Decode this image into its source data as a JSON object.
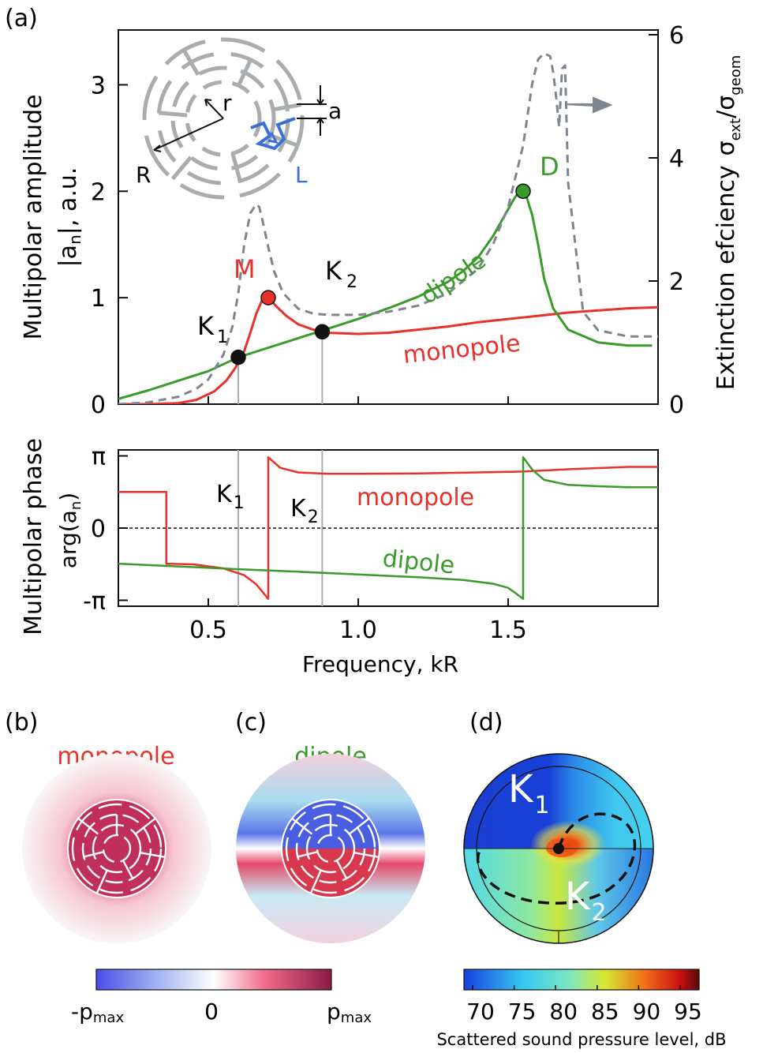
{
  "panel_labels": {
    "a": "(a)",
    "b": "(b)",
    "c": "(c)",
    "d": "(d)"
  },
  "colors": {
    "red": "#e8312a",
    "green": "#3a9a2a",
    "gray": "#7d8591",
    "blue_label": "#3a6fd8",
    "inset": "#a9adaf"
  },
  "chart_data": [
    {
      "type": "line",
      "title": "",
      "xlabel": "",
      "ylabel": "Multipolar amplitude |a_n|, a.u.",
      "ylabel_line1": "Multipolar amplitude",
      "ylabel_line2": "|a",
      "ylabel_sub": "n",
      "ylabel_tail": "|, a.u.",
      "y2label": "Extinction efciency σext/σgeom",
      "y2label_main": "Extinction efciency",
      "y2label_sigma": "σ",
      "y2label_sub1": "ext",
      "y2label_slash": "/σ",
      "y2label_sub2": "geom",
      "xlim": [
        0.2,
        2.0
      ],
      "ylim": [
        0,
        3.5
      ],
      "y2lim": [
        0,
        6
      ],
      "yticks": [
        0,
        1,
        2,
        3
      ],
      "ytick_labels": [
        "0",
        "1",
        "2",
        "3"
      ],
      "y2ticks": [
        0,
        2,
        4,
        6
      ],
      "y2tick_labels": [
        "0",
        "2",
        "4",
        "6"
      ],
      "xticks": [
        0.5,
        1.0,
        1.5
      ],
      "series": [
        {
          "name": "monopole",
          "color": "#e8312a",
          "style": "solid",
          "x": [
            0.2,
            0.3,
            0.4,
            0.46,
            0.52,
            0.56,
            0.59,
            0.62,
            0.64,
            0.66,
            0.68,
            0.69,
            0.71,
            0.73,
            0.76,
            0.8,
            0.85,
            0.9,
            1.0,
            1.1,
            1.2,
            1.3,
            1.4,
            1.5,
            1.6,
            1.7,
            1.8,
            1.9,
            2.0
          ],
          "y": [
            0.0,
            0.0,
            0.01,
            0.04,
            0.12,
            0.22,
            0.34,
            0.5,
            0.67,
            0.85,
            0.98,
            1.0,
            0.97,
            0.91,
            0.83,
            0.75,
            0.7,
            0.67,
            0.66,
            0.67,
            0.7,
            0.73,
            0.77,
            0.8,
            0.83,
            0.86,
            0.88,
            0.9,
            0.91
          ]
        },
        {
          "name": "dipole",
          "color": "#3a9a2a",
          "style": "solid",
          "x": [
            0.2,
            0.3,
            0.4,
            0.5,
            0.6,
            0.7,
            0.8,
            0.9,
            1.0,
            1.1,
            1.2,
            1.3,
            1.35,
            1.4,
            1.45,
            1.49,
            1.52,
            1.54,
            1.56,
            1.58,
            1.6,
            1.62,
            1.65,
            1.7,
            1.8,
            1.9,
            1.98
          ],
          "y": [
            0.05,
            0.13,
            0.22,
            0.31,
            0.44,
            0.53,
            0.62,
            0.71,
            0.8,
            0.9,
            1.01,
            1.15,
            1.25,
            1.38,
            1.58,
            1.78,
            1.93,
            2.01,
            1.96,
            1.78,
            1.5,
            1.18,
            0.9,
            0.7,
            0.58,
            0.55,
            0.55
          ]
        },
        {
          "name": "extinction efficiency",
          "color": "#7d8591",
          "style": "dashed",
          "axis": "right",
          "x": [
            0.2,
            0.3,
            0.4,
            0.46,
            0.5,
            0.55,
            0.58,
            0.6,
            0.62,
            0.64,
            0.66,
            0.67,
            0.68,
            0.7,
            0.72,
            0.75,
            0.8,
            0.85,
            0.9,
            1.0,
            1.1,
            1.2,
            1.3,
            1.4,
            1.45,
            1.5,
            1.55,
            1.58,
            1.6,
            1.62,
            1.64,
            1.65,
            1.66,
            1.67,
            1.68,
            1.69,
            1.7,
            1.75,
            1.8,
            1.9,
            2.0
          ],
          "y": [
            0.0,
            0.03,
            0.12,
            0.25,
            0.4,
            0.8,
            1.25,
            1.8,
            2.6,
            3.1,
            3.25,
            3.2,
            3.0,
            2.55,
            2.15,
            1.8,
            1.55,
            1.47,
            1.45,
            1.45,
            1.5,
            1.6,
            1.8,
            2.2,
            2.6,
            3.2,
            4.2,
            5.2,
            5.6,
            5.7,
            5.65,
            5.4,
            5.0,
            4.5,
            5.45,
            5.5,
            3.6,
            1.5,
            1.2,
            1.1,
            1.1
          ]
        }
      ],
      "points": [
        {
          "label": "K1",
          "x": 0.6,
          "y": 0.44,
          "color": "#111111"
        },
        {
          "label": "M",
          "x": 0.7,
          "y": 1.0,
          "color": "#e8312a"
        },
        {
          "label": "K2",
          "x": 0.88,
          "y": 0.68,
          "color": "#111111"
        },
        {
          "label": "D",
          "x": 1.55,
          "y": 2.0,
          "color": "#3a9a2a"
        }
      ],
      "vlines": [
        0.6,
        0.88
      ],
      "annotations": {
        "M": "M",
        "D": "D",
        "K1_letter": "K",
        "K1_sub": "1",
        "K2_letter": "K",
        "K2_sub": "2",
        "dipole": "dipole",
        "monopole": "monopole"
      },
      "inset": {
        "r": "r",
        "R": "R",
        "a": "a",
        "L": "L"
      }
    },
    {
      "type": "line",
      "xlabel": "Frequency, kR",
      "ylabel": "Multipolar phase arg(a_n)",
      "ylabel_line1": "Multipolar phase",
      "ylabel_line2": "arg(a",
      "ylabel_sub": "n",
      "ylabel_tail": ")",
      "xlim": [
        0.2,
        2.0
      ],
      "ylim": [
        -3.4,
        3.4
      ],
      "yticks": [
        3.14159,
        0,
        -3.14159
      ],
      "ytick_labels": [
        "π",
        "0",
        "-π"
      ],
      "xticks": [
        0.5,
        1.0,
        1.5
      ],
      "xtick_labels": [
        "0.5",
        "1.0",
        "1.5"
      ],
      "series": [
        {
          "name": "monopole",
          "color": "#e8312a",
          "style": "solid",
          "x": [
            0.2,
            0.36,
            0.36,
            0.45,
            0.55,
            0.62,
            0.66,
            0.7,
            0.7,
            0.74,
            0.8,
            0.9,
            1.0,
            1.2,
            1.4,
            1.5,
            1.55,
            1.7,
            1.9,
            2.0
          ],
          "y": [
            1.57,
            1.57,
            -1.55,
            -1.58,
            -1.75,
            -2.05,
            -2.45,
            -3.08,
            3.08,
            2.62,
            2.42,
            2.36,
            2.36,
            2.38,
            2.42,
            2.45,
            2.46,
            2.56,
            2.66,
            2.66
          ]
        },
        {
          "name": "dipole",
          "color": "#3a9a2a",
          "style": "solid",
          "x": [
            0.2,
            0.4,
            0.6,
            0.8,
            1.0,
            1.2,
            1.35,
            1.45,
            1.5,
            1.53,
            1.55,
            1.55,
            1.58,
            1.62,
            1.7,
            1.8,
            1.9,
            2.0
          ],
          "y": [
            -1.55,
            -1.67,
            -1.79,
            -1.9,
            -2.02,
            -2.14,
            -2.26,
            -2.42,
            -2.6,
            -2.88,
            -3.08,
            3.08,
            2.55,
            2.1,
            1.88,
            1.82,
            1.78,
            1.78
          ]
        }
      ],
      "hline": 0,
      "vlines": [
        0.6,
        0.88
      ],
      "annotations": {
        "K1_letter": "K",
        "K1_sub": "1",
        "K2_letter": "K",
        "K2_sub": "2",
        "monopole": "monopole",
        "dipole": "dipole"
      }
    }
  ],
  "panel_b": {
    "title": "monopole"
  },
  "panel_c": {
    "title": "dipole"
  },
  "panel_d": {
    "K1_letter": "K",
    "K1_sub": "1",
    "K2_letter": "K",
    "K2_sub": "2"
  },
  "colorbar_left": {
    "min_label": "-p",
    "min_sub": "max",
    "mid_label": "0",
    "max_label": "p",
    "max_sub": "max"
  },
  "colorbar_right": {
    "ticks": [
      "70",
      "75",
      "80",
      "85",
      "90",
      "95"
    ],
    "label": "Scattered sound pressure level, dB"
  }
}
